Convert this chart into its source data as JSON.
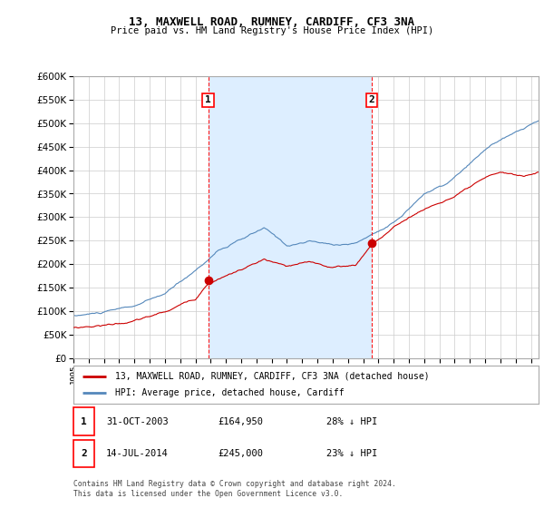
{
  "title": "13, MAXWELL ROAD, RUMNEY, CARDIFF, CF3 3NA",
  "subtitle": "Price paid vs. HM Land Registry's House Price Index (HPI)",
  "ylim": [
    0,
    600000
  ],
  "yticks": [
    0,
    50000,
    100000,
    150000,
    200000,
    250000,
    300000,
    350000,
    400000,
    450000,
    500000,
    550000,
    600000
  ],
  "xlim_start": 1995.0,
  "xlim_end": 2025.5,
  "background_color": "#ffffff",
  "plot_bg_color": "#ffffff",
  "shade_color": "#ddeeff",
  "grid_color": "#cccccc",
  "hpi_color": "#5588bb",
  "price_color": "#cc0000",
  "marker_fill": "#cc0000",
  "transaction1": {
    "date": "31-OCT-2003",
    "price": 164950,
    "label": "1",
    "year": 2003.83,
    "pct": "28% ↓ HPI"
  },
  "transaction2": {
    "date": "14-JUL-2014",
    "price": 245000,
    "label": "2",
    "year": 2014.54,
    "pct": "23% ↓ HPI"
  },
  "legend_line1": "13, MAXWELL ROAD, RUMNEY, CARDIFF, CF3 3NA (detached house)",
  "legend_line2": "HPI: Average price, detached house, Cardiff",
  "footer": "Contains HM Land Registry data © Crown copyright and database right 2024.\nThis data is licensed under the Open Government Licence v3.0."
}
